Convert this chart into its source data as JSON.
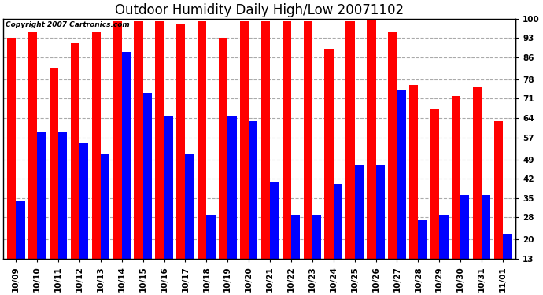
{
  "title": "Outdoor Humidity Daily High/Low 20071102",
  "copyright": "Copyright 2007 Cartronics.com",
  "dates": [
    "10/09",
    "10/10",
    "10/11",
    "10/12",
    "10/13",
    "10/14",
    "10/15",
    "10/16",
    "10/17",
    "10/18",
    "10/19",
    "10/20",
    "10/21",
    "10/22",
    "10/23",
    "10/24",
    "10/25",
    "10/26",
    "10/27",
    "10/28",
    "10/29",
    "10/30",
    "10/31",
    "11/01"
  ],
  "highs": [
    93,
    95,
    82,
    91,
    95,
    99,
    99,
    99,
    98,
    99,
    93,
    99,
    99,
    99,
    99,
    89,
    99,
    100,
    95,
    76,
    67,
    72,
    75,
    63
  ],
  "lows": [
    34,
    59,
    59,
    55,
    51,
    88,
    73,
    65,
    51,
    29,
    65,
    63,
    41,
    29,
    29,
    40,
    47,
    47,
    74,
    27,
    29,
    36,
    36,
    22
  ],
  "high_color": "#ff0000",
  "low_color": "#0000ff",
  "bg_color": "#ffffff",
  "plot_bg_color": "#ffffff",
  "grid_color": "#aaaaaa",
  "ylim_min": 13,
  "ylim_max": 100,
  "yticks": [
    13,
    20,
    28,
    35,
    42,
    49,
    57,
    64,
    71,
    78,
    86,
    93,
    100
  ],
  "bar_width": 0.42,
  "title_fontsize": 12,
  "tick_fontsize": 7.5,
  "copyright_fontsize": 6.5
}
